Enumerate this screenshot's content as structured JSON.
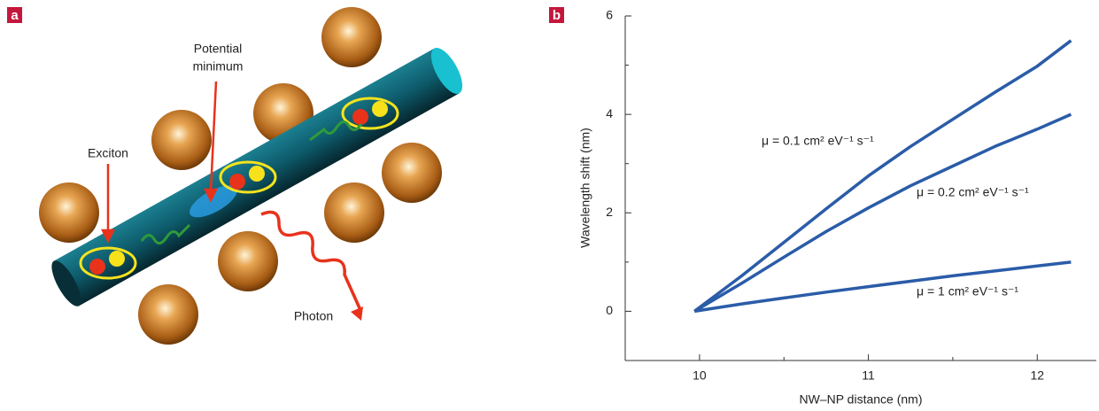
{
  "panel_a": {
    "panel_label": "a",
    "exciton_label": "Exciton",
    "potential_minimum_label": [
      "Potential",
      "minimum"
    ],
    "photon_label": "Photon"
  },
  "chart_data": {
    "type": "line",
    "panel_label": "b",
    "x_label": "NW–NP distance (nm)",
    "y_label": "Wavelength shift (nm)",
    "x": [
      9.97,
      10.25,
      10.5,
      10.75,
      11,
      11.25,
      11.5,
      11.75,
      12,
      12.2
    ],
    "series": [
      {
        "name": "μ = 0.1 cm² eV⁻¹ s⁻¹",
        "color": "#2a5ca8",
        "values": [
          0,
          0.72,
          1.4,
          2.08,
          2.75,
          3.35,
          3.9,
          4.45,
          4.98,
          5.5
        ]
      },
      {
        "name": "μ = 0.2 cm² eV⁻¹ s⁻¹",
        "color": "#2a5ca8",
        "values": [
          0,
          0.57,
          1.1,
          1.62,
          2.1,
          2.55,
          2.95,
          3.35,
          3.7,
          4.0
        ]
      },
      {
        "name": "μ = 1 cm² eV⁻¹ s⁻¹",
        "color": "#2a5ca8",
        "values": [
          0,
          0.15,
          0.27,
          0.39,
          0.5,
          0.61,
          0.72,
          0.82,
          0.92,
          1.0
        ]
      }
    ],
    "xlim": [
      9.56,
      12.35
    ],
    "xticks": [
      10,
      11,
      12
    ],
    "xminorticks": [
      10.5,
      11.5
    ],
    "ylim": [
      -1,
      6
    ],
    "yticks": [
      0,
      2,
      4,
      6
    ],
    "yminorticks": [
      1,
      3,
      5
    ],
    "grid": false
  }
}
